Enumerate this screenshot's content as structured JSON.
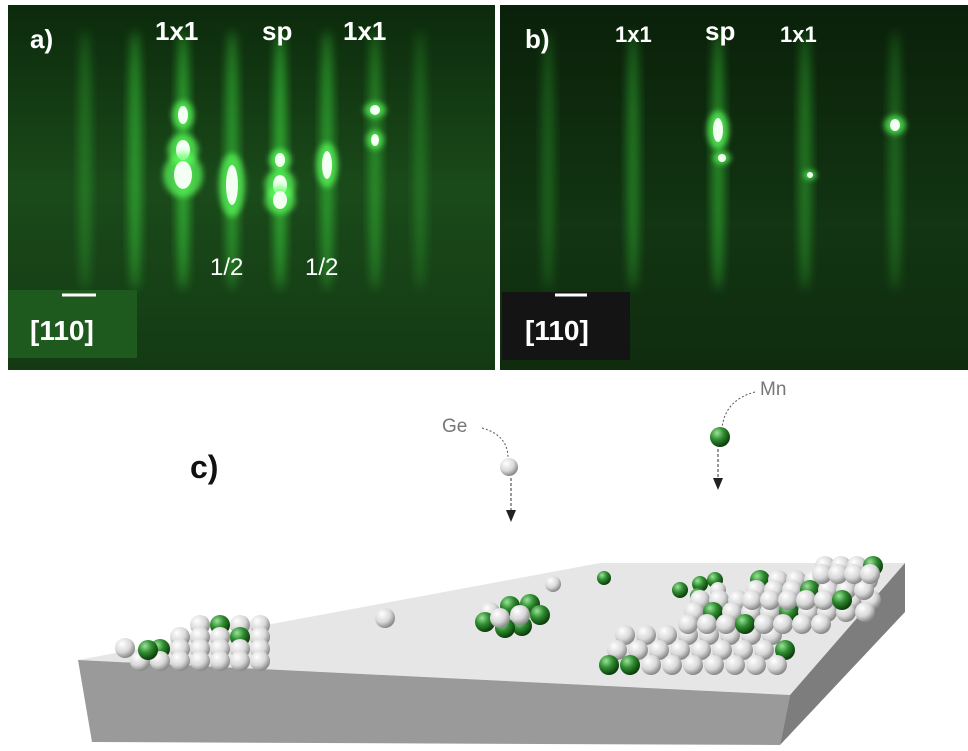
{
  "panel_a": {
    "label": "a)",
    "streak_labels": [
      "1x1",
      "sp",
      "1x1"
    ],
    "fraction_labels": [
      "1/2",
      "1/2"
    ],
    "direction": "[110]"
  },
  "panel_b": {
    "label": "b)",
    "streak_labels": [
      "1x1",
      "sp",
      "1x1"
    ],
    "direction": "[110]"
  },
  "panel_c": {
    "label": "c)",
    "atoms": [
      "Ge",
      "Mn"
    ]
  }
}
